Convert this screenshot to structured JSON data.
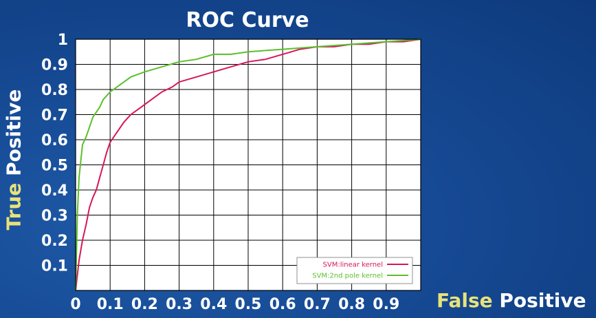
{
  "chart_data": {
    "type": "line",
    "title": "ROC Curve",
    "ylabel": {
      "part1": "True",
      "part2": "Positive"
    },
    "xlabel": {
      "part1": "False",
      "part2": "Positive"
    },
    "xlim": [
      0,
      1
    ],
    "ylim": [
      0,
      1
    ],
    "x_ticks": [
      "0",
      "0.1",
      "0.2",
      "0.3",
      "0.4",
      "0.5",
      "0.6",
      "0.7",
      "0.8",
      "0.9"
    ],
    "y_ticks": [
      "0.1",
      "0.2",
      "0.3",
      "0.4",
      "0.5",
      "0.6",
      "0.7",
      "0.8",
      "0.9",
      "1"
    ],
    "grid": true,
    "legend_position": "bottom-right",
    "series": [
      {
        "name": "SVM:linear kernel",
        "color": "#d6165a",
        "points": [
          [
            0,
            0
          ],
          [
            0.01,
            0.12
          ],
          [
            0.02,
            0.2
          ],
          [
            0.03,
            0.26
          ],
          [
            0.04,
            0.33
          ],
          [
            0.05,
            0.37
          ],
          [
            0.06,
            0.4
          ],
          [
            0.07,
            0.45
          ],
          [
            0.08,
            0.5
          ],
          [
            0.09,
            0.55
          ],
          [
            0.1,
            0.59
          ],
          [
            0.12,
            0.63
          ],
          [
            0.14,
            0.67
          ],
          [
            0.16,
            0.7
          ],
          [
            0.18,
            0.72
          ],
          [
            0.2,
            0.74
          ],
          [
            0.22,
            0.76
          ],
          [
            0.25,
            0.79
          ],
          [
            0.28,
            0.81
          ],
          [
            0.3,
            0.83
          ],
          [
            0.35,
            0.85
          ],
          [
            0.4,
            0.87
          ],
          [
            0.45,
            0.89
          ],
          [
            0.5,
            0.91
          ],
          [
            0.55,
            0.92
          ],
          [
            0.6,
            0.94
          ],
          [
            0.65,
            0.96
          ],
          [
            0.7,
            0.97
          ],
          [
            0.75,
            0.97
          ],
          [
            0.8,
            0.98
          ],
          [
            0.85,
            0.98
          ],
          [
            0.9,
            0.99
          ],
          [
            0.95,
            0.99
          ],
          [
            1,
            1
          ]
        ]
      },
      {
        "name": "SVM:2nd pole kernel",
        "color": "#5bbf2a",
        "points": [
          [
            0,
            0
          ],
          [
            0.005,
            0.3
          ],
          [
            0.01,
            0.45
          ],
          [
            0.02,
            0.58
          ],
          [
            0.03,
            0.61
          ],
          [
            0.04,
            0.65
          ],
          [
            0.05,
            0.69
          ],
          [
            0.06,
            0.71
          ],
          [
            0.07,
            0.73
          ],
          [
            0.08,
            0.76
          ],
          [
            0.1,
            0.79
          ],
          [
            0.12,
            0.81
          ],
          [
            0.14,
            0.83
          ],
          [
            0.16,
            0.85
          ],
          [
            0.18,
            0.86
          ],
          [
            0.2,
            0.87
          ],
          [
            0.25,
            0.89
          ],
          [
            0.3,
            0.91
          ],
          [
            0.35,
            0.92
          ],
          [
            0.4,
            0.94
          ],
          [
            0.45,
            0.94
          ],
          [
            0.5,
            0.95
          ],
          [
            0.55,
            0.955
          ],
          [
            0.6,
            0.96
          ],
          [
            0.7,
            0.97
          ],
          [
            0.8,
            0.98
          ],
          [
            0.9,
            0.99
          ],
          [
            1,
            1
          ]
        ]
      }
    ]
  }
}
